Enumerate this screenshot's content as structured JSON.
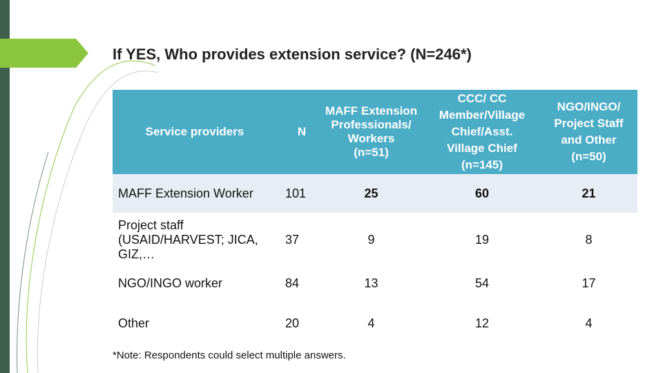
{
  "title": "If YES, Who provides extension service? (N=246*)",
  "header": {
    "col1": "Service providers",
    "col2": "N",
    "col3": [
      "MAFF Extension",
      "Professionals/",
      "Workers",
      "(n=51)"
    ],
    "col4": [
      "CCC/ CC",
      "Member/Village",
      "Chief/Asst.",
      "Village Chief",
      "(n=145)"
    ],
    "col5": [
      "NGO/INGO/",
      "Project Staff",
      "and Other",
      "(n=50)"
    ]
  },
  "rows": [
    {
      "provider": "MAFF Extension Worker",
      "n": "101",
      "maff": "25",
      "ccc": "60",
      "ngo": "21"
    },
    {
      "provider_lines": [
        "Project staff",
        "(USAID/HARVEST; JICA,",
        "GIZ,…"
      ],
      "n": "37",
      "maff": "9",
      "ccc": "19",
      "ngo": "8"
    },
    {
      "provider": "NGO/INGO worker",
      "n": "84",
      "maff": "13",
      "ccc": "54",
      "ngo": "17"
    },
    {
      "provider": "Other",
      "n": "20",
      "maff": "4",
      "ccc": "12",
      "ngo": "4"
    }
  ],
  "note": "*Note: Respondents could select multiple answers.",
  "colors": {
    "header_bg": "#4bacc6",
    "first_row_bg": "#e8edf5",
    "accent_green": "#8cc63f",
    "left_bar": "#3f5f4d"
  }
}
